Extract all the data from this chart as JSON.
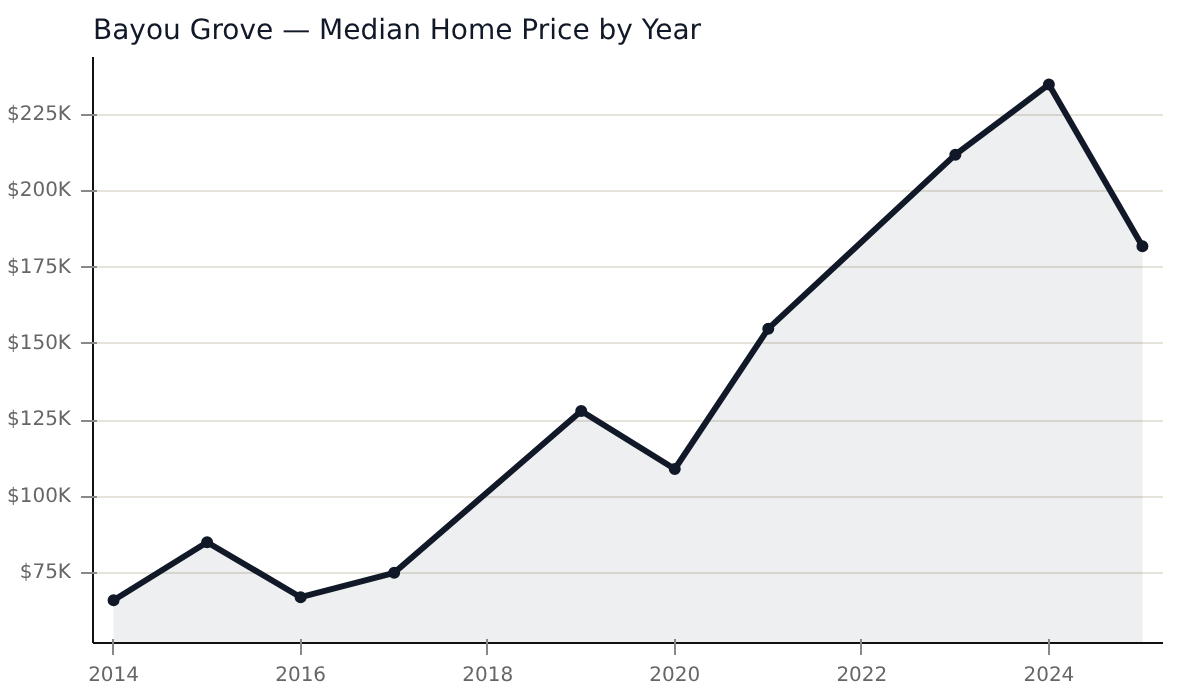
{
  "chart_data": {
    "type": "area",
    "title": "Bayou Grove — Median Home Price by Year",
    "x": [
      2014,
      2015,
      2016,
      2017,
      2019,
      2020,
      2021,
      2023,
      2024,
      2025
    ],
    "series": [
      {
        "color": "#111827",
        "values": [
          66,
          85,
          67,
          75,
          128,
          109,
          155,
          212,
          235,
          182
        ]
      }
    ],
    "xlim": [
      2013.78,
      2025.22
    ],
    "xticks": [
      2014,
      2016,
      2018,
      2020,
      2022,
      2024
    ],
    "ylim": [
      52,
      244
    ],
    "yticks": [
      {
        "value": 75,
        "label": "$75K"
      },
      {
        "value": 100,
        "label": "$100K"
      },
      {
        "value": 125,
        "label": "$125K"
      },
      {
        "value": 150,
        "label": "$150K"
      },
      {
        "value": 175,
        "label": "$175K"
      },
      {
        "value": 200,
        "label": "$200K"
      },
      {
        "value": 225,
        "label": "$225K"
      }
    ],
    "grid": "y",
    "marker": "circle",
    "line_style": "solid"
  }
}
